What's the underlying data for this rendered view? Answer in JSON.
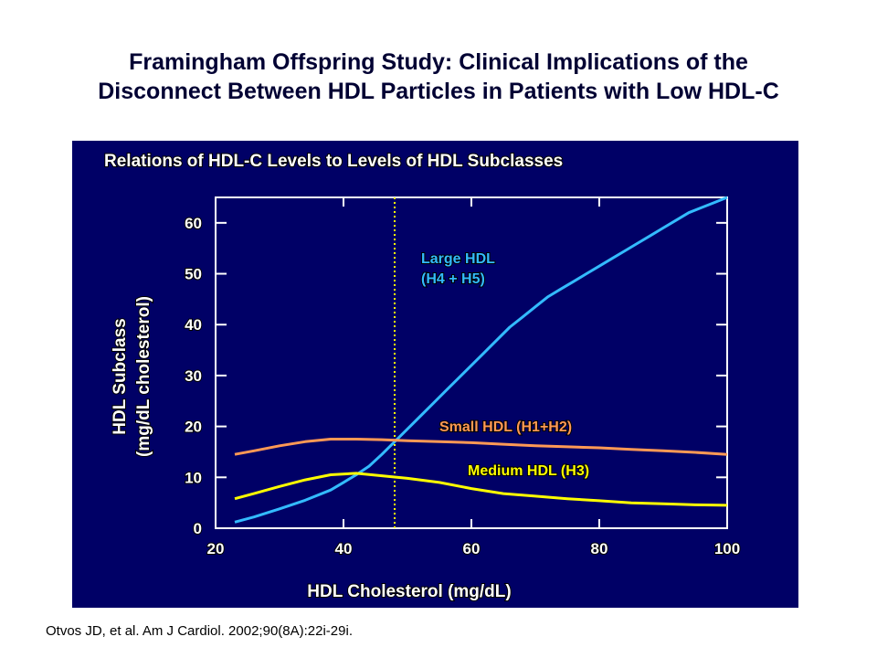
{
  "title_line1": "Framingham Offspring Study:  Clinical Implications of the",
  "title_line2": "Disconnect Between HDL Particles in Patients with Low HDL-C",
  "citation": "Otvos JD, et al.  Am J Cardiol.  2002;90(8A):22i-29i.",
  "colors": {
    "panel_bg": "#000066",
    "title_text": "#000033",
    "axis": "#ffffff",
    "large_hdl": "#33bbff",
    "small_hdl": "#ff9955",
    "medium_hdl": "#ffff00",
    "reference_line": "#ffff00"
  },
  "chart_data": {
    "type": "line",
    "title": "Relations of HDL-C Levels to Levels of HDL Subclasses",
    "xlabel": "HDL Cholesterol (mg/dL)",
    "ylabel": "HDL Subclass",
    "ylabel_unit": "(mg/dL cholesterol)",
    "xlim": [
      20,
      100
    ],
    "ylim": [
      0,
      65
    ],
    "xticks": [
      20,
      40,
      60,
      80,
      100
    ],
    "yticks": [
      0,
      10,
      20,
      30,
      40,
      50,
      60
    ],
    "grid": false,
    "reference_line": {
      "x": 48,
      "style": "dotted"
    },
    "series": [
      {
        "name": "Large HDL (H4 + H5)",
        "label_lines": [
          "Large HDL",
          "(H4 + H5)"
        ],
        "color_key": "large_hdl",
        "x": [
          23,
          26,
          30,
          34,
          38,
          40,
          42,
          44,
          46,
          48,
          50,
          52,
          54,
          56,
          58,
          60,
          62,
          64,
          66,
          68,
          70,
          72,
          74,
          76,
          78,
          80,
          82,
          84,
          86,
          88,
          90,
          92,
          94,
          96,
          98,
          100
        ],
        "values": [
          1.2,
          2.2,
          3.8,
          5.5,
          7.5,
          9.0,
          10.5,
          12.2,
          14.5,
          17.0,
          19.5,
          22.0,
          24.5,
          27.0,
          29.5,
          32.0,
          34.5,
          37.0,
          39.5,
          41.5,
          43.5,
          45.5,
          47.0,
          48.5,
          50.0,
          51.5,
          53.0,
          54.5,
          56.0,
          57.5,
          59.0,
          60.5,
          62.0,
          63.0,
          64.0,
          65.0
        ]
      },
      {
        "name": "Small HDL (H1+H2)",
        "label_lines": [
          "Small HDL (H1+H2)"
        ],
        "color_key": "small_hdl",
        "x": [
          23,
          26,
          30,
          34,
          38,
          42,
          46,
          50,
          55,
          60,
          65,
          70,
          75,
          80,
          85,
          90,
          95,
          100
        ],
        "values": [
          14.5,
          15.2,
          16.2,
          17.0,
          17.5,
          17.5,
          17.4,
          17.2,
          17.0,
          16.8,
          16.5,
          16.2,
          16.0,
          15.8,
          15.5,
          15.2,
          14.9,
          14.5
        ]
      },
      {
        "name": "Medium HDL (H3)",
        "label_lines": [
          "Medium HDL (H3)"
        ],
        "color_key": "medium_hdl",
        "x": [
          23,
          26,
          30,
          34,
          38,
          42,
          46,
          50,
          55,
          60,
          65,
          70,
          75,
          80,
          85,
          90,
          95,
          100
        ],
        "values": [
          5.8,
          6.8,
          8.2,
          9.5,
          10.5,
          10.8,
          10.3,
          9.8,
          9.0,
          7.8,
          6.8,
          6.3,
          5.8,
          5.4,
          5.0,
          4.8,
          4.6,
          4.5
        ]
      }
    ]
  }
}
